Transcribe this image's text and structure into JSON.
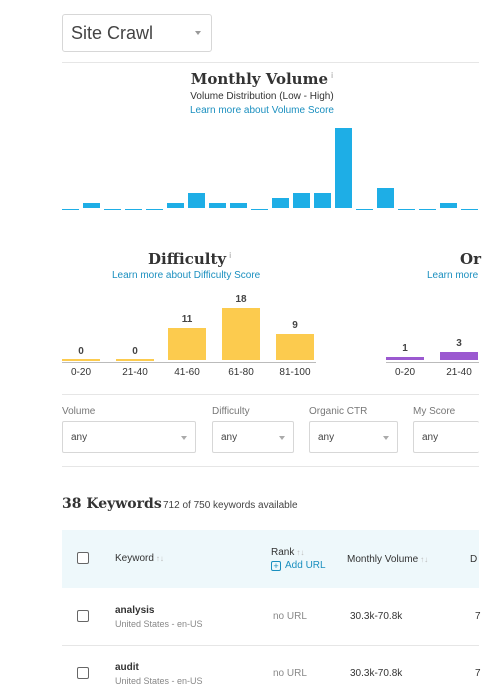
{
  "site_selector": {
    "value": "Site Crawl"
  },
  "monthly_volume": {
    "title": "Monthly Volume",
    "subtitle": "Volume Distribution (Low - High)",
    "link": "Learn more about Volume Score"
  },
  "difficulty": {
    "title": "Difficulty",
    "link": "Learn more about Difficulty Score"
  },
  "organic_ctr": {
    "title": "Or",
    "link": "Learn more"
  },
  "chart_data": [
    {
      "type": "bar",
      "title": "Monthly Volume",
      "subtitle": "Volume Distribution (Low - High)",
      "values": [
        0,
        1,
        0,
        0,
        0,
        1,
        3,
        1,
        1,
        0,
        2,
        3,
        3,
        16,
        0,
        4,
        0,
        0,
        1,
        0
      ],
      "color": "#1eaee6"
    },
    {
      "type": "bar",
      "title": "Difficulty",
      "categories": [
        "0-20",
        "21-40",
        "41-60",
        "61-80",
        "81-100"
      ],
      "values": [
        0,
        0,
        11,
        18,
        9
      ],
      "color": "#fccb4e"
    },
    {
      "type": "bar",
      "title": "Or",
      "categories": [
        "0-20",
        "21-40"
      ],
      "values": [
        1,
        3
      ],
      "color": "#9b59d0"
    }
  ],
  "filters": [
    {
      "label": "Volume",
      "value": "any"
    },
    {
      "label": "Difficulty",
      "value": "any"
    },
    {
      "label": "Organic CTR",
      "value": "any"
    },
    {
      "label": "My Score",
      "value": "any"
    }
  ],
  "keywords": {
    "count_label": "38 Keywords",
    "available": "712 of 750 keywords available"
  },
  "table": {
    "headers": {
      "keyword": "Keyword",
      "rank": "Rank",
      "add_url": "Add URL",
      "monthly_volume": "Monthly Volume",
      "truncated": "D"
    },
    "rows": [
      {
        "keyword": "analysis",
        "location": "United States - en-US",
        "url": "no URL",
        "volume": "30.3k-70.8k",
        "trunc": "7"
      },
      {
        "keyword": "audit",
        "location": "United States - en-US",
        "url": "no URL",
        "volume": "30.3k-70.8k",
        "trunc": "7"
      }
    ]
  }
}
